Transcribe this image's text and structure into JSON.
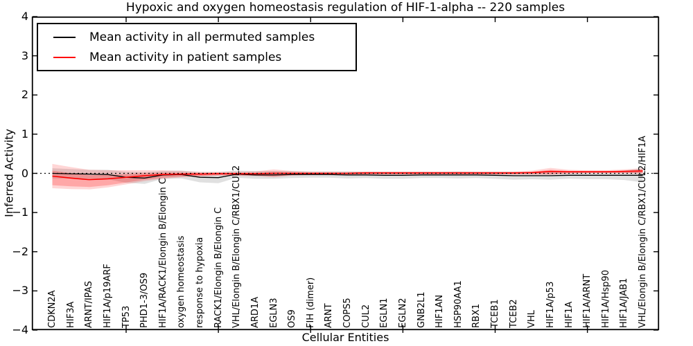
{
  "chart_data": {
    "type": "line",
    "title": "Hypoxic and oxygen homeostasis regulation of HIF-1-alpha -- 220 samples",
    "xlabel": "Cellular Entities",
    "ylabel": "Inferred Activity",
    "ylim": [
      -4,
      4
    ],
    "ytick_values": [
      4,
      3,
      2,
      1,
      0,
      -1,
      -2,
      -3,
      -4
    ],
    "ytick_labels": [
      "4",
      "3",
      "2",
      "1",
      "0",
      "−1",
      "−2",
      "−3",
      "−4"
    ],
    "grid": false,
    "legend_position": "upper left",
    "zero_line": true,
    "major_x_tick_indices": [
      4,
      9,
      14,
      19,
      24,
      29
    ],
    "categories": [
      "CDKN2A",
      "HIF3A",
      "ARNT/IPAS",
      "HIF1A/p19ARF",
      "TP53",
      "PHD1-3/OS9",
      "HIF1A/RACK1/Elongin B/Elongin C",
      "oxygen homeostasis",
      "response to hypoxia",
      "RACK1/Elongin B/Elongin C",
      "VHL/Elongin B/Elongin C/RBX1/CUL2",
      "ARD1A",
      "EGLN3",
      "OS9",
      "FIH (dimer)",
      "ARNT",
      "COPS5",
      "CUL2",
      "EGLN1",
      "EGLN2",
      "GNB2L1",
      "HIF1AN",
      "HSP90AA1",
      "RBX1",
      "TCEB1",
      "TCEB2",
      "VHL",
      "HIF1A/p53",
      "HIF1A",
      "HIF1A/ARNT",
      "HIF1A/Hsp90",
      "HIF1A/JAB1",
      "VHL/Elongin B/Elongin C/RBX1/CUL2/HIF1A"
    ],
    "series": [
      {
        "name": "Mean activity in all permuted samples",
        "color": "#000000",
        "band_color": "rgba(0,0,0,0.12)",
        "values": [
          0.0,
          -0.01,
          -0.02,
          -0.03,
          -0.1,
          -0.12,
          -0.04,
          -0.03,
          -0.1,
          -0.11,
          -0.02,
          -0.04,
          -0.04,
          -0.03,
          -0.03,
          -0.03,
          -0.04,
          -0.04,
          -0.05,
          -0.05,
          -0.04,
          -0.04,
          -0.04,
          -0.04,
          -0.05,
          -0.06,
          -0.06,
          -0.06,
          -0.05,
          -0.05,
          -0.05,
          -0.05,
          -0.05
        ],
        "band": [
          0.13,
          0.12,
          0.11,
          0.12,
          0.14,
          0.15,
          0.1,
          0.1,
          0.13,
          0.14,
          0.09,
          0.1,
          0.1,
          0.09,
          0.08,
          0.08,
          0.09,
          0.08,
          0.09,
          0.09,
          0.08,
          0.08,
          0.09,
          0.08,
          0.09,
          0.1,
          0.09,
          0.1,
          0.09,
          0.1,
          0.1,
          0.12,
          0.18
        ]
      },
      {
        "name": "Mean activity in patient samples",
        "color": "#ff0000",
        "band_color": "rgba(255,0,0,0.16)",
        "band_inner_color": "rgba(255,0,0,0.22)",
        "values": [
          -0.07,
          -0.12,
          -0.16,
          -0.14,
          -0.1,
          -0.06,
          -0.03,
          -0.02,
          -0.02,
          -0.01,
          -0.01,
          -0.01,
          0.0,
          0.0,
          0.0,
          0.0,
          0.0,
          0.01,
          0.01,
          0.01,
          0.01,
          0.01,
          0.01,
          0.01,
          0.01,
          0.01,
          0.02,
          0.05,
          0.04,
          0.04,
          0.04,
          0.05,
          0.06
        ],
        "band": [
          0.31,
          0.28,
          0.25,
          0.22,
          0.18,
          0.14,
          0.11,
          0.08,
          0.06,
          0.05,
          0.05,
          0.06,
          0.1,
          0.06,
          0.04,
          0.04,
          0.04,
          0.04,
          0.04,
          0.04,
          0.04,
          0.04,
          0.04,
          0.04,
          0.04,
          0.04,
          0.05,
          0.09,
          0.05,
          0.04,
          0.04,
          0.05,
          0.07
        ]
      }
    ]
  }
}
